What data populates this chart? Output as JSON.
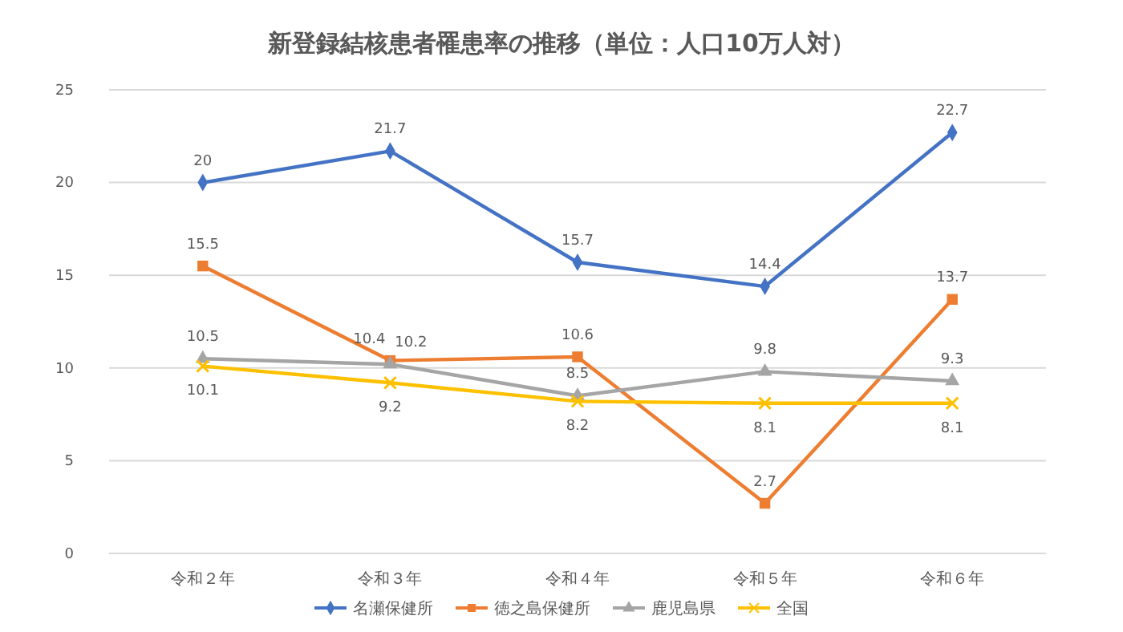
{
  "chart_data": {
    "type": "line",
    "title": "新登録結核患者罹患率の推移（単位：人口10万人対）",
    "categories": [
      "令和２年",
      "令和３年",
      "令和４年",
      "令和５年",
      "令和６年"
    ],
    "series": [
      {
        "name": "名瀬保健所",
        "color": "#4472c4",
        "marker": "diamond",
        "values": [
          20,
          21.7,
          15.7,
          14.4,
          22.7
        ]
      },
      {
        "name": "徳之島保健所",
        "color": "#ed7d31",
        "marker": "square",
        "values": [
          15.5,
          10.4,
          10.6,
          2.7,
          13.7
        ]
      },
      {
        "name": "鹿児島県",
        "color": "#a5a5a5",
        "marker": "triangle",
        "values": [
          10.5,
          10.2,
          8.5,
          9.8,
          9.3
        ]
      },
      {
        "name": "全国",
        "color": "#ffc000",
        "marker": "cross",
        "values": [
          10.1,
          9.2,
          8.2,
          8.1,
          8.1
        ]
      }
    ],
    "ylim": [
      0,
      25
    ],
    "yticks": [
      0,
      5,
      10,
      15,
      20,
      25
    ],
    "grid": "y",
    "legend": "bottom",
    "data_labels": true
  }
}
